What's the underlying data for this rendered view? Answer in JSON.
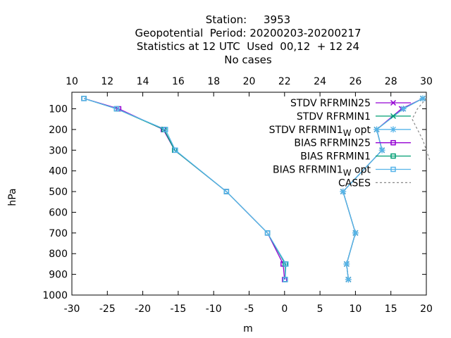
{
  "chart_data": {
    "type": "line",
    "title_lines": [
      "Station:     3953",
      "Geopotential  Period: 20200203-20200217",
      "Statistics at 12 UTC  Used  00,12  + 12 24",
      "No cases"
    ],
    "xlabel": "m",
    "ylabel": "hPa",
    "xlim": [
      -30,
      20
    ],
    "x2lim": [
      10,
      30
    ],
    "ylim": [
      1000,
      20
    ],
    "y_reversed": true,
    "x_ticks": [
      "-30",
      "-25",
      "-20",
      "-15",
      "-10",
      "-5",
      "0",
      "5",
      "10",
      "15",
      "20"
    ],
    "x2_ticks": [
      "10",
      "12",
      "14",
      "16",
      "18",
      "20",
      "22",
      "24",
      "26",
      "28",
      "30"
    ],
    "y_ticks": [
      "100",
      "200",
      "300",
      "400",
      "500",
      "600",
      "700",
      "800",
      "900",
      "1000"
    ],
    "legend_position": "top-right",
    "series": [
      {
        "name": "STDV RFRMIN25",
        "legend_parts": [
          "STDV RFRMIN25"
        ],
        "axis": "x2",
        "color": "#9400d3",
        "marker": "x",
        "points": [
          [
            29.8,
            50
          ],
          [
            28.6,
            100
          ],
          [
            27.2,
            200
          ],
          [
            27.5,
            300
          ],
          [
            25.3,
            500
          ],
          [
            26.0,
            700
          ],
          [
            25.5,
            850
          ],
          [
            25.6,
            925
          ]
        ]
      },
      {
        "name": "STDV RFRMIN1",
        "legend_parts": [
          "STDV RFRMIN1"
        ],
        "axis": "x2",
        "color": "#009e73",
        "marker": "x",
        "points": [
          [
            29.8,
            50
          ],
          [
            28.7,
            100
          ],
          [
            27.2,
            200
          ],
          [
            27.5,
            300
          ],
          [
            25.3,
            500
          ],
          [
            26.0,
            700
          ],
          [
            25.5,
            850
          ],
          [
            25.6,
            925
          ]
        ]
      },
      {
        "name": "STDV RFRMIN1_W opt",
        "legend_parts": [
          "STDV RFRMIN1",
          "W",
          " opt"
        ],
        "axis": "x2",
        "color": "#56b4e9",
        "marker": "*",
        "points": [
          [
            29.8,
            50
          ],
          [
            28.7,
            100
          ],
          [
            27.2,
            200
          ],
          [
            27.5,
            300
          ],
          [
            25.3,
            500
          ],
          [
            26.0,
            700
          ],
          [
            25.5,
            850
          ],
          [
            25.6,
            925
          ]
        ]
      },
      {
        "name": "BIAS RFRMIN25",
        "legend_parts": [
          "BIAS RFRMIN25"
        ],
        "axis": "x1",
        "color": "#9400d3",
        "marker": "square",
        "points": [
          [
            -28.3,
            50
          ],
          [
            -23.4,
            100
          ],
          [
            -17.1,
            200
          ],
          [
            -15.5,
            300
          ],
          [
            -8.2,
            500
          ],
          [
            -2.4,
            700
          ],
          [
            -0.2,
            850
          ],
          [
            0.0,
            925
          ]
        ]
      },
      {
        "name": "BIAS RFRMIN1",
        "legend_parts": [
          "BIAS RFRMIN1"
        ],
        "axis": "x1",
        "color": "#009e73",
        "marker": "square",
        "points": [
          [
            -28.3,
            50
          ],
          [
            -23.7,
            100
          ],
          [
            -17.0,
            200
          ],
          [
            -15.5,
            300
          ],
          [
            -8.2,
            500
          ],
          [
            -2.4,
            700
          ],
          [
            0.1,
            850
          ],
          [
            0.1,
            925
          ]
        ]
      },
      {
        "name": "BIAS RFRMIN1_W opt",
        "legend_parts": [
          "BIAS RFRMIN1",
          "W",
          " opt"
        ],
        "axis": "x1",
        "color": "#56b4e9",
        "marker": "square",
        "points": [
          [
            -28.3,
            50
          ],
          [
            -23.7,
            100
          ],
          [
            -16.8,
            200
          ],
          [
            -15.4,
            300
          ],
          [
            -8.2,
            500
          ],
          [
            -2.4,
            700
          ],
          [
            0.2,
            850
          ],
          [
            0.1,
            925
          ]
        ]
      },
      {
        "name": "CASES",
        "legend_parts": [
          "CASES"
        ],
        "axis": "x2",
        "color": "#888888",
        "marker": "none",
        "dashed": true,
        "points": [
          [
            30.0,
            50
          ],
          [
            29.5,
            100
          ],
          [
            29.2,
            150
          ],
          [
            29.8,
            250
          ],
          [
            30.2,
            350
          ]
        ]
      }
    ]
  }
}
